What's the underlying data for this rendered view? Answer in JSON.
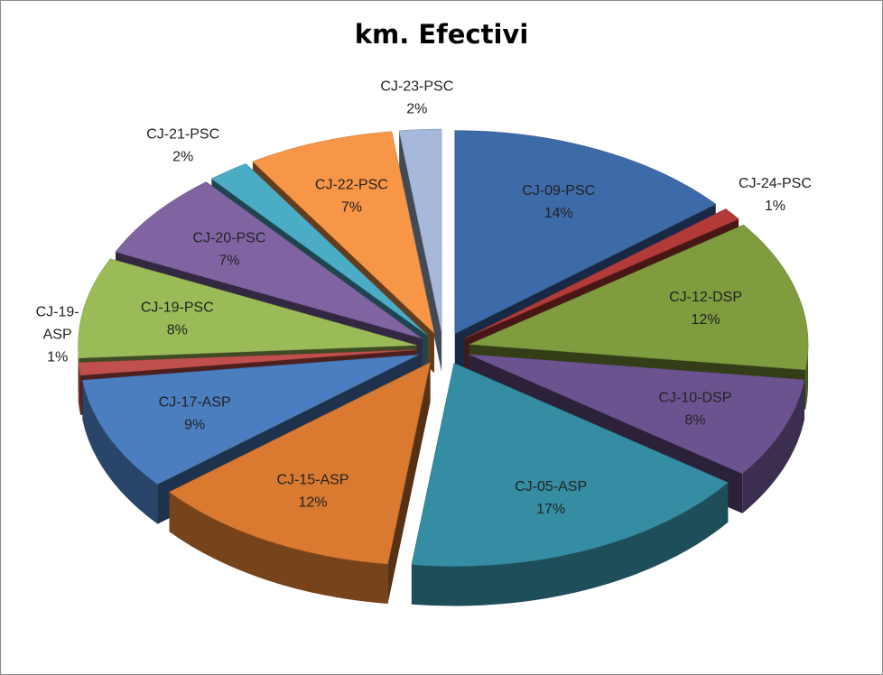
{
  "chart_data": {
    "type": "pie",
    "title": "km.  Efectivi",
    "slices": [
      {
        "label": "CJ-09-PSC",
        "value": 14,
        "pct_label": "14%",
        "color": "#3d6aa8"
      },
      {
        "label": "CJ-24-PSC",
        "value": 1,
        "pct_label": "1%",
        "color": "#b23a37"
      },
      {
        "label": "CJ-12-DSP",
        "value": 12,
        "pct_label": "12%",
        "color": "#7f9c3e"
      },
      {
        "label": "CJ-10-DSP",
        "value": 8,
        "pct_label": "8%",
        "color": "#6b538f"
      },
      {
        "label": "CJ-05-ASP",
        "value": 17,
        "pct_label": "17%",
        "color": "#348da3"
      },
      {
        "label": "CJ-15-ASP",
        "value": 12,
        "pct_label": "12%",
        "color": "#d97a30"
      },
      {
        "label": "CJ-17-ASP",
        "value": 9,
        "pct_label": "9%",
        "color": "#4a7ebf"
      },
      {
        "label": "CJ-19-ASP",
        "value": 1,
        "pct_label": "1%",
        "color": "#c0504d"
      },
      {
        "label": "CJ-19-PSC",
        "value": 8,
        "pct_label": "8%",
        "color": "#9bbb59"
      },
      {
        "label": "CJ-20-PSC",
        "value": 7,
        "pct_label": "7%",
        "color": "#8064a2"
      },
      {
        "label": "CJ-21-PSC",
        "value": 2,
        "pct_label": "2%",
        "color": "#4bacc6"
      },
      {
        "label": "CJ-22-PSC",
        "value": 7,
        "pct_label": "7%",
        "color": "#f79646"
      },
      {
        "label": "CJ-23-PSC",
        "value": 2,
        "pct_label": "2%",
        "color": "#a6b9da"
      }
    ]
  }
}
